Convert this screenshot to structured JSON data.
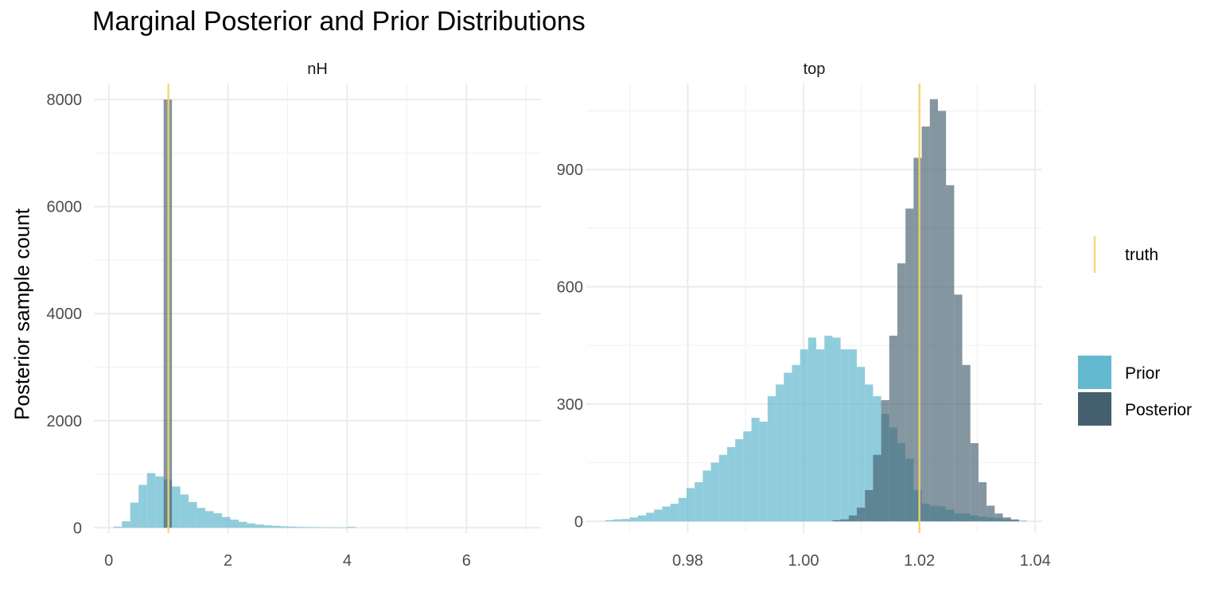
{
  "chart_data": {
    "type": "bar",
    "title": "Marginal Posterior and Prior Distributions",
    "ylabel": "Posterior sample count",
    "legend": {
      "placement": "right",
      "line_label": "truth",
      "fill_labels": [
        "Prior",
        "Posterior"
      ]
    },
    "colors": {
      "prior": "#5bb5cc",
      "posterior": "#44606f",
      "truth": "#f7d36e",
      "grid": "#ebebeb"
    },
    "panels": [
      {
        "strip": "nH",
        "xlim": [
          -0.25,
          7.25
        ],
        "ylim": [
          -100,
          8300
        ],
        "xticks": [
          0,
          2,
          4,
          6
        ],
        "xtick_labels": [
          "0",
          "2",
          "4",
          "6"
        ],
        "yticks": [
          0,
          2000,
          4000,
          6000,
          8000
        ],
        "ytick_labels": [
          "0",
          "2000",
          "4000",
          "6000",
          "8000"
        ],
        "truth": 1.0,
        "bin_width": 0.14,
        "series": [
          {
            "name": "Prior",
            "x": [
              0.15,
              0.29,
              0.43,
              0.57,
              0.71,
              0.85,
              0.99,
              1.13,
              1.27,
              1.41,
              1.55,
              1.69,
              1.83,
              1.97,
              2.11,
              2.25,
              2.39,
              2.53,
              2.67,
              2.81,
              2.95,
              3.09,
              3.23,
              3.37,
              3.51,
              3.65,
              3.79,
              3.93,
              4.07
            ],
            "values": [
              20,
              120,
              470,
              800,
              1020,
              960,
              900,
              770,
              620,
              480,
              370,
              310,
              270,
              200,
              150,
              110,
              80,
              60,
              45,
              35,
              25,
              20,
              15,
              12,
              10,
              8,
              5,
              5,
              15
            ]
          },
          {
            "name": "Posterior",
            "x": [
              0.99
            ],
            "values": [
              8000
            ]
          }
        ]
      },
      {
        "strip": "top",
        "xlim": [
          0.9625,
          1.0412
        ],
        "ylim": [
          -30,
          1120
        ],
        "xticks": [
          0.98,
          1.0,
          1.02,
          1.04
        ],
        "xtick_labels": [
          "0.98",
          "1.00",
          "1.02",
          "1.04"
        ],
        "yticks": [
          0,
          300,
          600,
          900
        ],
        "ytick_labels": [
          "0",
          "300",
          "600",
          "900"
        ],
        "truth": 1.02,
        "bin_width": 0.0014,
        "series": [
          {
            "name": "Prior",
            "x": [
              0.9665,
              0.9679,
              0.9693,
              0.9707,
              0.9721,
              0.9735,
              0.9749,
              0.9763,
              0.9777,
              0.9791,
              0.9805,
              0.9819,
              0.9833,
              0.9847,
              0.9861,
              0.9875,
              0.9889,
              0.9903,
              0.9917,
              0.9931,
              0.9945,
              0.9959,
              0.9973,
              0.9987,
              1.0001,
              1.0015,
              1.0029,
              1.0043,
              1.0057,
              1.0071,
              1.0085,
              1.0099,
              1.0113,
              1.0127,
              1.0141,
              1.0155,
              1.0169,
              1.0183,
              1.0197,
              1.0211,
              1.0225,
              1.0239,
              1.0253,
              1.0267,
              1.0281,
              1.0295,
              1.0309,
              1.0323,
              1.0337,
              1.0351,
              1.0365,
              1.0379
            ],
            "values": [
              3,
              5,
              6,
              10,
              15,
              22,
              30,
              38,
              45,
              60,
              85,
              100,
              130,
              150,
              170,
              190,
              210,
              230,
              265,
              255,
              320,
              350,
              380,
              400,
              440,
              470,
              440,
              475,
              470,
              440,
              440,
              395,
              350,
              320,
              275,
              240,
              200,
              160,
              80,
              45,
              40,
              38,
              30,
              20,
              20,
              15,
              12,
              10,
              8,
              5,
              3,
              2
            ]
          },
          {
            "name": "Posterior",
            "x": [
              1.0057,
              1.0071,
              1.0085,
              1.0099,
              1.0113,
              1.0127,
              1.0141,
              1.0155,
              1.0169,
              1.0183,
              1.0197,
              1.0211,
              1.0225,
              1.0239,
              1.0253,
              1.0267,
              1.0281,
              1.0295,
              1.0309,
              1.0323,
              1.0337,
              1.0351,
              1.0365
            ],
            "values": [
              3,
              5,
              15,
              35,
              80,
              170,
              310,
              475,
              660,
              800,
              930,
              1010,
              1080,
              1050,
              860,
              580,
              400,
              200,
              100,
              40,
              20,
              10,
              5
            ]
          }
        ]
      }
    ]
  }
}
